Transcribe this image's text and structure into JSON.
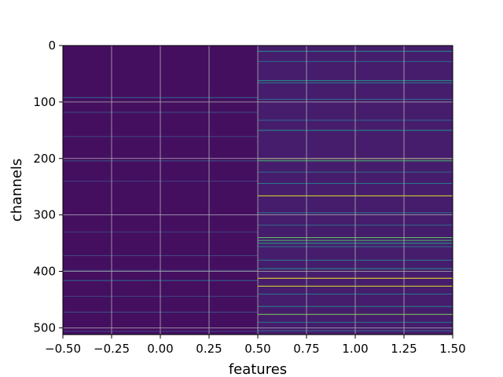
{
  "chart_data": {
    "type": "heatmap",
    "title": "",
    "xlabel": "features",
    "ylabel": "channels",
    "colormap": "viridis",
    "xlim": [
      -0.5,
      1.5
    ],
    "ylim": [
      512,
      0
    ],
    "y_inverted": true,
    "grid": true,
    "grid_color": "#b0b0b0",
    "x_ticks": [
      -0.5,
      -0.25,
      0.0,
      0.25,
      0.5,
      0.75,
      1.0,
      1.25,
      1.5
    ],
    "x_tick_labels": [
      "−0.50",
      "−0.25",
      "0.00",
      "0.25",
      "0.50",
      "0.75",
      "1.00",
      "1.25",
      "1.50"
    ],
    "y_ticks": [
      0,
      100,
      200,
      300,
      400,
      500
    ],
    "y_tick_labels": [
      "0",
      "100",
      "200",
      "300",
      "400",
      "500"
    ],
    "columns": [
      {
        "feature": 0,
        "base_value": 0.04,
        "bands": [
          {
            "channel": 92,
            "value": 0.35
          },
          {
            "channel": 118,
            "value": 0.25
          },
          {
            "channel": 161,
            "value": 0.22
          },
          {
            "channel": 204,
            "value": 0.25
          },
          {
            "channel": 240,
            "value": 0.2
          },
          {
            "channel": 330,
            "value": 0.2
          },
          {
            "channel": 372,
            "value": 0.22
          },
          {
            "channel": 398,
            "value": 0.25
          },
          {
            "channel": 416,
            "value": 0.35
          },
          {
            "channel": 444,
            "value": 0.22
          },
          {
            "channel": 472,
            "value": 0.25
          },
          {
            "channel": 506,
            "value": 0.2
          }
        ]
      },
      {
        "feature": 1,
        "base_value": 0.08,
        "bands": [
          {
            "channel": 10,
            "value": 0.5
          },
          {
            "channel": 28,
            "value": 0.35
          },
          {
            "channel": 62,
            "value": 0.55
          },
          {
            "channel": 66,
            "value": 0.4
          },
          {
            "channel": 95,
            "value": 0.35
          },
          {
            "channel": 132,
            "value": 0.35
          },
          {
            "channel": 150,
            "value": 0.5
          },
          {
            "channel": 200,
            "value": 0.85
          },
          {
            "channel": 204,
            "value": 0.7
          },
          {
            "channel": 224,
            "value": 0.35
          },
          {
            "channel": 244,
            "value": 0.4
          },
          {
            "channel": 266,
            "value": 0.95
          },
          {
            "channel": 296,
            "value": 0.4
          },
          {
            "channel": 318,
            "value": 0.35
          },
          {
            "channel": 340,
            "value": 0.75
          },
          {
            "channel": 345,
            "value": 0.7
          },
          {
            "channel": 350,
            "value": 0.6
          },
          {
            "channel": 356,
            "value": 0.4
          },
          {
            "channel": 380,
            "value": 0.4
          },
          {
            "channel": 395,
            "value": 0.5
          },
          {
            "channel": 412,
            "value": 1.0
          },
          {
            "channel": 426,
            "value": 0.95
          },
          {
            "channel": 440,
            "value": 0.4
          },
          {
            "channel": 462,
            "value": 0.45
          },
          {
            "channel": 476,
            "value": 0.8
          },
          {
            "channel": 490,
            "value": 0.4
          },
          {
            "channel": 505,
            "value": 0.35
          }
        ]
      }
    ]
  }
}
